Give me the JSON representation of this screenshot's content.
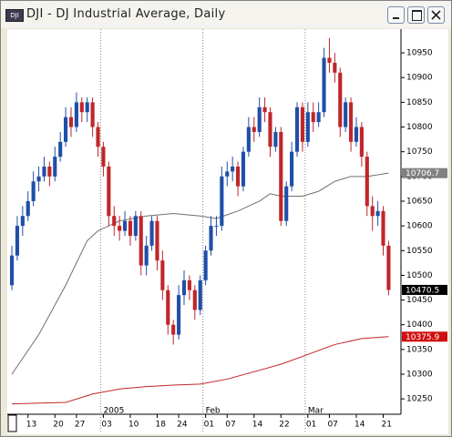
{
  "window": {
    "icon": "DJI",
    "title": "DJI - DJ Industrial Average, Daily"
  },
  "chart_data": {
    "type": "candlestick",
    "up_color": "#1f4fa8",
    "down_color": "#c0262a",
    "x": [
      0,
      1,
      2,
      3,
      4,
      5,
      6,
      7,
      8,
      9,
      10,
      11,
      12,
      13,
      14,
      15,
      16,
      17,
      18,
      19,
      20,
      21,
      22,
      23,
      24,
      25,
      26,
      27,
      28,
      29,
      30,
      31,
      32,
      33,
      34,
      35,
      36,
      37,
      38,
      39,
      40,
      41,
      42,
      43,
      44,
      45,
      46,
      47,
      48,
      49,
      50,
      51,
      52,
      53,
      54,
      55,
      56,
      57,
      58,
      59,
      60,
      61,
      62,
      63,
      64,
      65,
      66,
      67,
      68,
      69,
      70
    ],
    "candles": [
      [
        10480,
        10560,
        10470,
        10540
      ],
      [
        10540,
        10620,
        10530,
        10600
      ],
      [
        10600,
        10640,
        10580,
        10620
      ],
      [
        10620,
        10670,
        10610,
        10650
      ],
      [
        10650,
        10710,
        10640,
        10690
      ],
      [
        10690,
        10720,
        10670,
        10700
      ],
      [
        10700,
        10740,
        10690,
        10720
      ],
      [
        10720,
        10730,
        10680,
        10700
      ],
      [
        10700,
        10760,
        10690,
        10740
      ],
      [
        10740,
        10790,
        10730,
        10770
      ],
      [
        10770,
        10840,
        10760,
        10820
      ],
      [
        10820,
        10840,
        10780,
        10800
      ],
      [
        10800,
        10870,
        10790,
        10850
      ],
      [
        10850,
        10860,
        10810,
        10830
      ],
      [
        10830,
        10860,
        10810,
        10850
      ],
      [
        10850,
        10860,
        10780,
        10800
      ],
      [
        10800,
        10810,
        10740,
        10760
      ],
      [
        10760,
        10770,
        10700,
        10720
      ],
      [
        10720,
        10730,
        10600,
        10620
      ],
      [
        10620,
        10640,
        10580,
        10600
      ],
      [
        10600,
        10620,
        10570,
        10590
      ],
      [
        10590,
        10630,
        10580,
        10610
      ],
      [
        10610,
        10620,
        10560,
        10580
      ],
      [
        10580,
        10630,
        10570,
        10620
      ],
      [
        10620,
        10630,
        10500,
        10520
      ],
      [
        10520,
        10580,
        10500,
        10560
      ],
      [
        10560,
        10620,
        10550,
        10610
      ],
      [
        10610,
        10620,
        10510,
        10530
      ],
      [
        10530,
        10550,
        10450,
        10470
      ],
      [
        10470,
        10480,
        10380,
        10400
      ],
      [
        10400,
        10410,
        10360,
        10380
      ],
      [
        10380,
        10480,
        10370,
        10460
      ],
      [
        10460,
        10510,
        10440,
        10490
      ],
      [
        10490,
        10500,
        10450,
        10470
      ],
      [
        10470,
        10480,
        10410,
        10430
      ],
      [
        10430,
        10500,
        10420,
        10490
      ],
      [
        10490,
        10560,
        10480,
        10550
      ],
      [
        10550,
        10620,
        10540,
        10600
      ],
      [
        10600,
        10620,
        10580,
        10600
      ],
      [
        10600,
        10720,
        10590,
        10700
      ],
      [
        10700,
        10730,
        10680,
        10710
      ],
      [
        10710,
        10740,
        10690,
        10720
      ],
      [
        10720,
        10730,
        10660,
        10680
      ],
      [
        10680,
        10760,
        10670,
        10750
      ],
      [
        10750,
        10820,
        10740,
        10800
      ],
      [
        10800,
        10820,
        10770,
        10790
      ],
      [
        10790,
        10860,
        10780,
        10840
      ],
      [
        10840,
        10860,
        10810,
        10830
      ],
      [
        10830,
        10840,
        10740,
        10760
      ],
      [
        10760,
        10800,
        10750,
        10790
      ],
      [
        10790,
        10800,
        10600,
        10610
      ],
      [
        10610,
        10690,
        10600,
        10680
      ],
      [
        10680,
        10770,
        10670,
        10750
      ],
      [
        10750,
        10850,
        10740,
        10840
      ],
      [
        10840,
        10850,
        10750,
        10770
      ],
      [
        10770,
        10850,
        10760,
        10830
      ],
      [
        10830,
        10850,
        10790,
        10810
      ],
      [
        10810,
        10850,
        10800,
        10830
      ],
      [
        10830,
        10960,
        10820,
        10940
      ],
      [
        10940,
        10980,
        10910,
        10930
      ],
      [
        10930,
        10950,
        10890,
        10910
      ],
      [
        10910,
        10920,
        10780,
        10800
      ],
      [
        10800,
        10860,
        10790,
        10850
      ],
      [
        10850,
        10860,
        10750,
        10770
      ],
      [
        10770,
        10820,
        10760,
        10800
      ],
      [
        10800,
        10810,
        10720,
        10740
      ],
      [
        10740,
        10750,
        10620,
        10640
      ],
      [
        10640,
        10660,
        10590,
        10620
      ],
      [
        10620,
        10650,
        10600,
        10630
      ],
      [
        10630,
        10640,
        10540,
        10560
      ],
      [
        10560,
        10570,
        10460,
        10470.5
      ]
    ],
    "ma_lines": [
      {
        "color": "#707070",
        "x": [
          0,
          5,
          10,
          14,
          16,
          20,
          25,
          30,
          35,
          38,
          42,
          46,
          48,
          50,
          54,
          57,
          60,
          63,
          66,
          70
        ],
        "values": [
          10300,
          10380,
          10480,
          10570,
          10590,
          10610,
          10620,
          10625,
          10620,
          10615,
          10630,
          10650,
          10665,
          10660,
          10660,
          10670,
          10690,
          10700,
          10700,
          10706.7
        ]
      },
      {
        "color": "#c0262a",
        "x": [
          0,
          10,
          15,
          20,
          25,
          30,
          35,
          40,
          45,
          50,
          55,
          60,
          65,
          70
        ],
        "values": [
          10240,
          10243,
          10260,
          10270,
          10275,
          10278,
          10280,
          10290,
          10305,
          10320,
          10340,
          10360,
          10372,
          10375.9
        ]
      }
    ],
    "price_tags": [
      {
        "value": 10706.7,
        "label": "10706.7",
        "color": "#808080"
      },
      {
        "value": 10470.5,
        "label": "10470.5",
        "color": "#000000"
      },
      {
        "value": 10375.9,
        "label": "10375.9",
        "color": "#d01010"
      }
    ],
    "xlim": [
      -0.85,
      72.3
    ],
    "ylim": [
      10219,
      10998
    ],
    "yticks": [
      10250,
      10300,
      10350,
      10400,
      10450,
      10500,
      10550,
      10600,
      10650,
      10700,
      10750,
      10800,
      10850,
      10900,
      10950
    ],
    "xticks": [
      {
        "value": 3,
        "label": "13"
      },
      {
        "value": 8,
        "label": "20"
      },
      {
        "value": 12,
        "label": "27"
      },
      {
        "value": 17,
        "label": "03"
      },
      {
        "value": 22,
        "label": "10"
      },
      {
        "value": 27,
        "label": "18"
      },
      {
        "value": 31,
        "label": "24"
      },
      {
        "value": 36,
        "label": "01"
      },
      {
        "value": 40,
        "label": "07"
      },
      {
        "value": 45,
        "label": "14"
      },
      {
        "value": 50,
        "label": "22"
      },
      {
        "value": 55,
        "label": "01"
      },
      {
        "value": 59,
        "label": "07"
      },
      {
        "value": 64,
        "label": "14"
      },
      {
        "value": 69,
        "label": "21"
      }
    ],
    "month_ticks": [
      {
        "value": 16.5,
        "label": "2005"
      },
      {
        "value": 35.5,
        "label": "Feb"
      },
      {
        "value": 54.5,
        "label": "Mar"
      }
    ]
  }
}
